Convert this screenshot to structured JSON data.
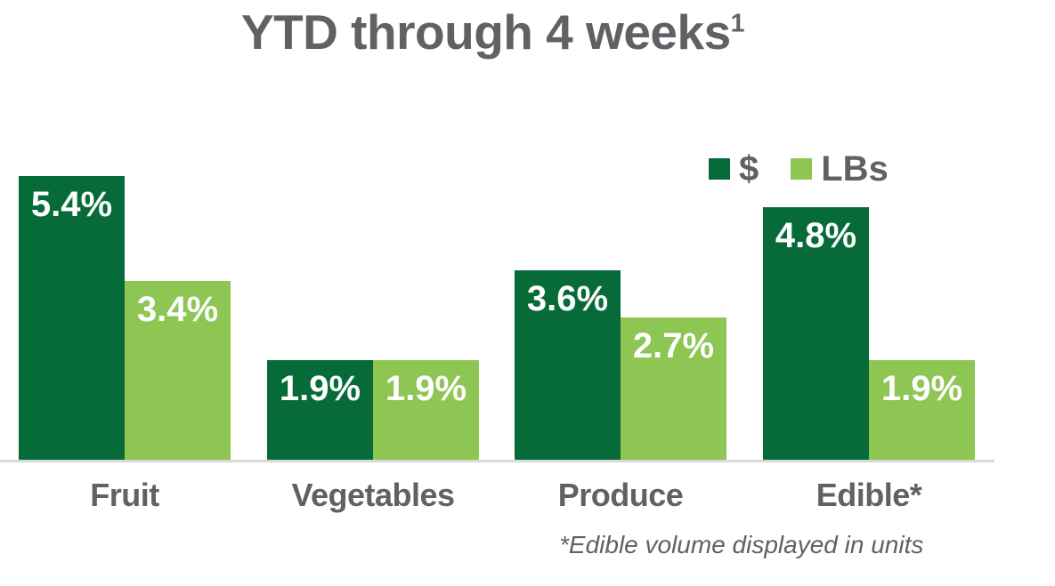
{
  "title": {
    "text": "YTD through 4 weeks",
    "superscript": "1"
  },
  "legend": {
    "items": [
      {
        "label": "$",
        "swatch_color": "#066B38"
      },
      {
        "label": "LBs",
        "swatch_color": "#8DC653"
      }
    ]
  },
  "footnote": "*Edible volume displayed in units",
  "colors": {
    "dark_green": "#066B38",
    "light_green": "#8DC653",
    "text_gray": "#5F6165",
    "axis_line": "#D9D9D9",
    "value_label": "#FFFFFF"
  },
  "chart_data": {
    "type": "bar",
    "title": "YTD through 4 weeks¹",
    "categories": [
      "Fruit",
      "Vegetables",
      "Produce",
      "Edible*"
    ],
    "series": [
      {
        "name": "$",
        "color": "#066B38",
        "values": [
          5.4,
          1.9,
          3.6,
          4.8
        ],
        "labels": [
          "5.4%",
          "1.9%",
          "3.6%",
          "4.8%"
        ]
      },
      {
        "name": "LBs",
        "color": "#8DC653",
        "values": [
          3.4,
          1.9,
          2.7,
          1.9
        ],
        "labels": [
          "3.4%",
          "1.9%",
          "2.7%",
          "1.9%"
        ]
      }
    ],
    "unit": "percent",
    "ylim": [
      0,
      5.4
    ],
    "grid": false,
    "y_axis_visible": false,
    "legend_position": "top-right",
    "value_label_position": "inside-top",
    "footnote": "*Edible volume displayed in units"
  }
}
